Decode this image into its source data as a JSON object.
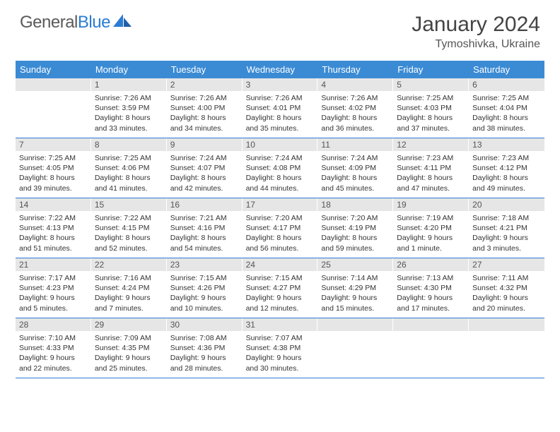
{
  "brand": {
    "name_gray": "General",
    "name_blue": "Blue"
  },
  "title": "January 2024",
  "location": "Tymoshivka, Ukraine",
  "colors": {
    "header_bg": "#3b8bd4",
    "daynum_bg": "#e6e6e6",
    "week_border": "#2b7cd3",
    "text": "#333333",
    "logo_gray": "#5a5a5a",
    "logo_blue": "#2b7cd3"
  },
  "typography": {
    "month_title_size": 30,
    "location_size": 16,
    "day_header_size": 13,
    "cell_text_size": 10.5
  },
  "day_names": [
    "Sunday",
    "Monday",
    "Tuesday",
    "Wednesday",
    "Thursday",
    "Friday",
    "Saturday"
  ],
  "weeks": [
    [
      {
        "day": "",
        "sunrise": "",
        "sunset": "",
        "daylight1": "",
        "daylight2": ""
      },
      {
        "day": "1",
        "sunrise": "Sunrise: 7:26 AM",
        "sunset": "Sunset: 3:59 PM",
        "daylight1": "Daylight: 8 hours",
        "daylight2": "and 33 minutes."
      },
      {
        "day": "2",
        "sunrise": "Sunrise: 7:26 AM",
        "sunset": "Sunset: 4:00 PM",
        "daylight1": "Daylight: 8 hours",
        "daylight2": "and 34 minutes."
      },
      {
        "day": "3",
        "sunrise": "Sunrise: 7:26 AM",
        "sunset": "Sunset: 4:01 PM",
        "daylight1": "Daylight: 8 hours",
        "daylight2": "and 35 minutes."
      },
      {
        "day": "4",
        "sunrise": "Sunrise: 7:26 AM",
        "sunset": "Sunset: 4:02 PM",
        "daylight1": "Daylight: 8 hours",
        "daylight2": "and 36 minutes."
      },
      {
        "day": "5",
        "sunrise": "Sunrise: 7:25 AM",
        "sunset": "Sunset: 4:03 PM",
        "daylight1": "Daylight: 8 hours",
        "daylight2": "and 37 minutes."
      },
      {
        "day": "6",
        "sunrise": "Sunrise: 7:25 AM",
        "sunset": "Sunset: 4:04 PM",
        "daylight1": "Daylight: 8 hours",
        "daylight2": "and 38 minutes."
      }
    ],
    [
      {
        "day": "7",
        "sunrise": "Sunrise: 7:25 AM",
        "sunset": "Sunset: 4:05 PM",
        "daylight1": "Daylight: 8 hours",
        "daylight2": "and 39 minutes."
      },
      {
        "day": "8",
        "sunrise": "Sunrise: 7:25 AM",
        "sunset": "Sunset: 4:06 PM",
        "daylight1": "Daylight: 8 hours",
        "daylight2": "and 41 minutes."
      },
      {
        "day": "9",
        "sunrise": "Sunrise: 7:24 AM",
        "sunset": "Sunset: 4:07 PM",
        "daylight1": "Daylight: 8 hours",
        "daylight2": "and 42 minutes."
      },
      {
        "day": "10",
        "sunrise": "Sunrise: 7:24 AM",
        "sunset": "Sunset: 4:08 PM",
        "daylight1": "Daylight: 8 hours",
        "daylight2": "and 44 minutes."
      },
      {
        "day": "11",
        "sunrise": "Sunrise: 7:24 AM",
        "sunset": "Sunset: 4:09 PM",
        "daylight1": "Daylight: 8 hours",
        "daylight2": "and 45 minutes."
      },
      {
        "day": "12",
        "sunrise": "Sunrise: 7:23 AM",
        "sunset": "Sunset: 4:11 PM",
        "daylight1": "Daylight: 8 hours",
        "daylight2": "and 47 minutes."
      },
      {
        "day": "13",
        "sunrise": "Sunrise: 7:23 AM",
        "sunset": "Sunset: 4:12 PM",
        "daylight1": "Daylight: 8 hours",
        "daylight2": "and 49 minutes."
      }
    ],
    [
      {
        "day": "14",
        "sunrise": "Sunrise: 7:22 AM",
        "sunset": "Sunset: 4:13 PM",
        "daylight1": "Daylight: 8 hours",
        "daylight2": "and 51 minutes."
      },
      {
        "day": "15",
        "sunrise": "Sunrise: 7:22 AM",
        "sunset": "Sunset: 4:15 PM",
        "daylight1": "Daylight: 8 hours",
        "daylight2": "and 52 minutes."
      },
      {
        "day": "16",
        "sunrise": "Sunrise: 7:21 AM",
        "sunset": "Sunset: 4:16 PM",
        "daylight1": "Daylight: 8 hours",
        "daylight2": "and 54 minutes."
      },
      {
        "day": "17",
        "sunrise": "Sunrise: 7:20 AM",
        "sunset": "Sunset: 4:17 PM",
        "daylight1": "Daylight: 8 hours",
        "daylight2": "and 56 minutes."
      },
      {
        "day": "18",
        "sunrise": "Sunrise: 7:20 AM",
        "sunset": "Sunset: 4:19 PM",
        "daylight1": "Daylight: 8 hours",
        "daylight2": "and 59 minutes."
      },
      {
        "day": "19",
        "sunrise": "Sunrise: 7:19 AM",
        "sunset": "Sunset: 4:20 PM",
        "daylight1": "Daylight: 9 hours",
        "daylight2": "and 1 minute."
      },
      {
        "day": "20",
        "sunrise": "Sunrise: 7:18 AM",
        "sunset": "Sunset: 4:21 PM",
        "daylight1": "Daylight: 9 hours",
        "daylight2": "and 3 minutes."
      }
    ],
    [
      {
        "day": "21",
        "sunrise": "Sunrise: 7:17 AM",
        "sunset": "Sunset: 4:23 PM",
        "daylight1": "Daylight: 9 hours",
        "daylight2": "and 5 minutes."
      },
      {
        "day": "22",
        "sunrise": "Sunrise: 7:16 AM",
        "sunset": "Sunset: 4:24 PM",
        "daylight1": "Daylight: 9 hours",
        "daylight2": "and 7 minutes."
      },
      {
        "day": "23",
        "sunrise": "Sunrise: 7:15 AM",
        "sunset": "Sunset: 4:26 PM",
        "daylight1": "Daylight: 9 hours",
        "daylight2": "and 10 minutes."
      },
      {
        "day": "24",
        "sunrise": "Sunrise: 7:15 AM",
        "sunset": "Sunset: 4:27 PM",
        "daylight1": "Daylight: 9 hours",
        "daylight2": "and 12 minutes."
      },
      {
        "day": "25",
        "sunrise": "Sunrise: 7:14 AM",
        "sunset": "Sunset: 4:29 PM",
        "daylight1": "Daylight: 9 hours",
        "daylight2": "and 15 minutes."
      },
      {
        "day": "26",
        "sunrise": "Sunrise: 7:13 AM",
        "sunset": "Sunset: 4:30 PM",
        "daylight1": "Daylight: 9 hours",
        "daylight2": "and 17 minutes."
      },
      {
        "day": "27",
        "sunrise": "Sunrise: 7:11 AM",
        "sunset": "Sunset: 4:32 PM",
        "daylight1": "Daylight: 9 hours",
        "daylight2": "and 20 minutes."
      }
    ],
    [
      {
        "day": "28",
        "sunrise": "Sunrise: 7:10 AM",
        "sunset": "Sunset: 4:33 PM",
        "daylight1": "Daylight: 9 hours",
        "daylight2": "and 22 minutes."
      },
      {
        "day": "29",
        "sunrise": "Sunrise: 7:09 AM",
        "sunset": "Sunset: 4:35 PM",
        "daylight1": "Daylight: 9 hours",
        "daylight2": "and 25 minutes."
      },
      {
        "day": "30",
        "sunrise": "Sunrise: 7:08 AM",
        "sunset": "Sunset: 4:36 PM",
        "daylight1": "Daylight: 9 hours",
        "daylight2": "and 28 minutes."
      },
      {
        "day": "31",
        "sunrise": "Sunrise: 7:07 AM",
        "sunset": "Sunset: 4:38 PM",
        "daylight1": "Daylight: 9 hours",
        "daylight2": "and 30 minutes."
      },
      {
        "day": "",
        "sunrise": "",
        "sunset": "",
        "daylight1": "",
        "daylight2": ""
      },
      {
        "day": "",
        "sunrise": "",
        "sunset": "",
        "daylight1": "",
        "daylight2": ""
      },
      {
        "day": "",
        "sunrise": "",
        "sunset": "",
        "daylight1": "",
        "daylight2": ""
      }
    ]
  ]
}
